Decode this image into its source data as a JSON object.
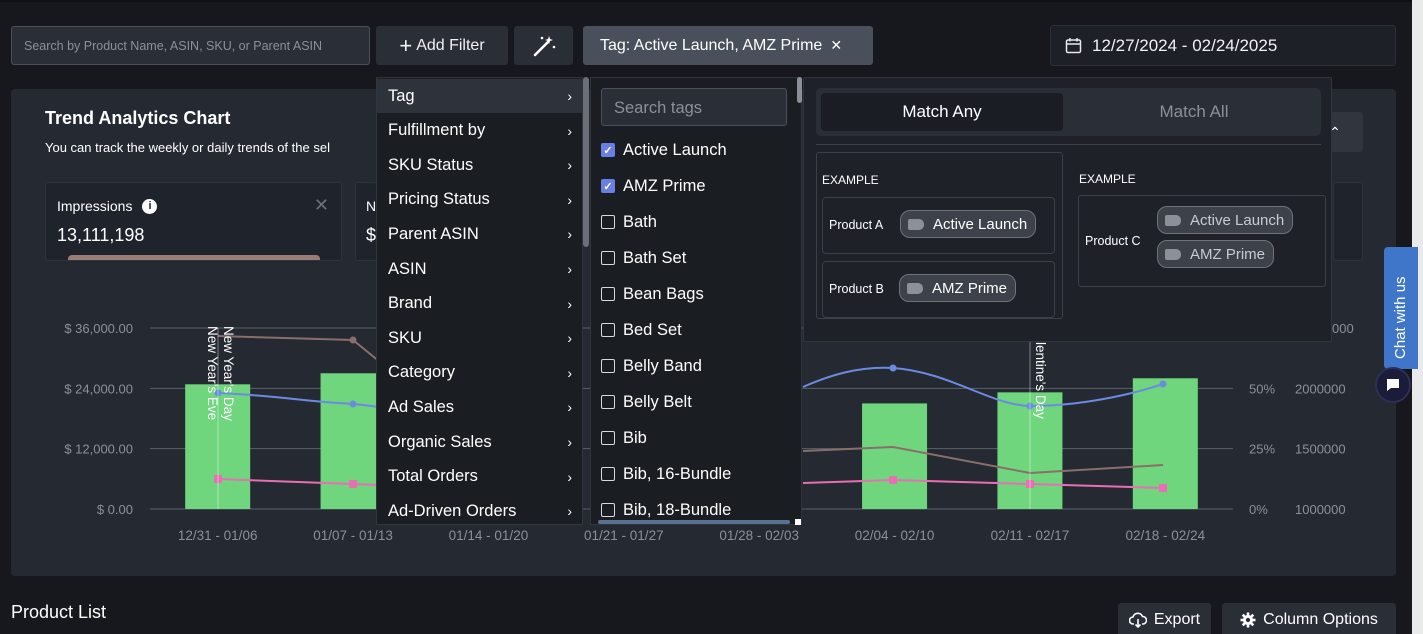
{
  "toolbar": {
    "search_placeholder": "Search by Product Name, ASIN, SKU, or Parent ASIN",
    "add_filter_label": "Add Filter",
    "active_tag_filter": "Tag: Active Launch, AMZ Prime",
    "date_range": "12/27/2024 - 02/24/2025"
  },
  "trend": {
    "title": "Trend Analytics Chart",
    "subtitle": "You can track the weekly or daily trends of the sel"
  },
  "metrics": [
    {
      "label": "Impressions",
      "value": "13,111,198"
    },
    {
      "label": "N",
      "value": "$"
    }
  ],
  "filter_menu": {
    "categories": [
      "Tag",
      "Fulfillment by",
      "SKU Status",
      "Pricing Status",
      "Parent ASIN",
      "ASIN",
      "Brand",
      "SKU",
      "Category",
      "Ad Sales",
      "Organic Sales",
      "Total Orders",
      "Ad-Driven Orders"
    ],
    "active": "Tag"
  },
  "tag_menu": {
    "search_placeholder": "Search tags",
    "options": [
      {
        "label": "Active Launch",
        "checked": true
      },
      {
        "label": "AMZ Prime",
        "checked": true
      },
      {
        "label": "Bath",
        "checked": false
      },
      {
        "label": "Bath Set",
        "checked": false
      },
      {
        "label": "Bean Bags",
        "checked": false
      },
      {
        "label": "Bed Set",
        "checked": false
      },
      {
        "label": "Belly Band",
        "checked": false
      },
      {
        "label": "Belly Belt",
        "checked": false
      },
      {
        "label": "Bib",
        "checked": false
      },
      {
        "label": "Bib, 16-Bundle",
        "checked": false
      },
      {
        "label": "Bib, 18-Bundle",
        "checked": false
      }
    ]
  },
  "match_panel": {
    "match_any": "Match Any",
    "match_all": "Match All",
    "example_label": "EXAMPLE",
    "left_example": [
      {
        "product": "Product A",
        "tags": [
          "Active Launch"
        ]
      },
      {
        "product": "Product B",
        "tags": [
          "AMZ Prime"
        ]
      }
    ],
    "right_example": {
      "product": "Product C",
      "tags": [
        "Active Launch",
        "AMZ Prime"
      ]
    }
  },
  "chart_data": {
    "type": "bar",
    "categories": [
      "12/31 - 01/06",
      "01/07 - 01/13",
      "01/14 - 01/20",
      "01/21 - 01/27",
      "01/28 - 02/03",
      "02/04 - 02/10",
      "02/11 - 02/17",
      "02/18 - 02/24"
    ],
    "y_left_ticks": [
      "$ 36,000.00",
      "$ 24,000.00",
      "$ 12,000.00",
      "$ 0.00"
    ],
    "y_left_range": [
      0,
      36000
    ],
    "y_mid_ticks": [
      "50%",
      "25%",
      "0%"
    ],
    "y_right_ticks": [
      "2000000",
      "1500000",
      "1000000"
    ],
    "y_right_partial_top": "000",
    "bars_visible": [
      {
        "category": "12/31 - 01/06",
        "value": 24800
      },
      {
        "category": "01/07 - 01/13",
        "value": 27000
      },
      {
        "category": "02/04 - 02/10",
        "value": 21000
      },
      {
        "category": "02/11 - 02/17",
        "value": 23200
      },
      {
        "category": "02/18 - 02/24",
        "value": 26000
      }
    ],
    "annotations": [
      "New Year's Day",
      "New Year's Eve",
      "Valentine's Day"
    ],
    "annotations_visible_text": [
      "New Year's Day",
      "New Year's Eve",
      "lentine's Day"
    ],
    "colors": {
      "bars": "#6fd67e",
      "blue_line": "#6c8be0",
      "brown_line": "#8a6e6a",
      "pink_line": "#e86fb3"
    }
  },
  "bottom": {
    "product_list": "Product List",
    "export_label": "Export",
    "column_options_label": "Column Options"
  },
  "chat": {
    "label": "Chat with us"
  }
}
